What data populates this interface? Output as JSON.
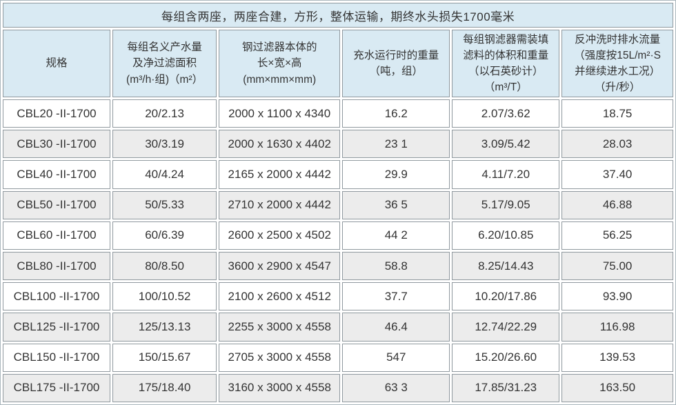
{
  "banner": "每组含两座，两座合建，方形，整体运输，期终水头损失1700毫米",
  "columns": [
    {
      "label": "规格"
    },
    {
      "label": "每组名义产水量\n及净过滤面积\n(m³/h·组)（m²）"
    },
    {
      "label": "钢过滤器本体的\n长×宽×高\n(mm×mm×mm)"
    },
    {
      "label": "充水运行时的重量\n（吨，组）"
    },
    {
      "label": "每组钢滤器需装填\n滤料的体积和重量\n（以石英砂计）\n（m³/T）"
    },
    {
      "label": "反冲洗时排水流量\n（强度按15L/m²·S\n并继续进水工况）\n（升/秒）"
    }
  ],
  "rows": [
    [
      "CBL20 -II-1700",
      "20/2.13",
      "2000 x 1100 x 4340",
      "16.2",
      "2.07/3.62",
      "18.75"
    ],
    [
      "CBL30 -II-1700",
      "30/3.19",
      "2000 x 1630 x 4402",
      "23 1",
      "3.09/5.42",
      "28.03"
    ],
    [
      "CBL40 -II-1700",
      "40/4.24",
      "2165 x 2000 x 4442",
      "29.9",
      "4.11/7.20",
      "37.40"
    ],
    [
      "CBL50 -II-1700",
      "50/5.33",
      "2710 x 2000 x 4442",
      "36 5",
      "5.17/9.05",
      "46.88"
    ],
    [
      "CBL60 -II-1700",
      "60/6.39",
      "2600 x 2500 x 4502",
      "44 2",
      "6.20/10.85",
      "56.25"
    ],
    [
      "CBL80 -II-1700",
      "80/8.50",
      "3600 x 2900 x 4547",
      "58.8",
      "8.25/14.43",
      "75.00"
    ],
    [
      "CBL100 -II-1700",
      "100/10.52",
      "2100 x 2600 x 4512",
      "37.7",
      "10.20/17.86",
      "93.90"
    ],
    [
      "CBL125 -II-1700",
      "125/13.13",
      "2255 x 3000 x 4558",
      "46.4",
      "12.74/22.29",
      "116.98"
    ],
    [
      "CBL150 -II-1700",
      "150/15.67",
      "2705 x 3000 x 4558",
      "547",
      "15.20/26.60",
      "139.53"
    ],
    [
      "CBL175 -II-1700",
      "175/18.40",
      "3160 x 3000 x 4558",
      "63 3",
      "17.85/31.23",
      "163.50"
    ]
  ],
  "colors": {
    "header_bg": "#d9eaf3",
    "row_bg": "#ffffff",
    "row_alt_bg": "#ececec",
    "border": "#8f989e",
    "text": "#333333"
  }
}
